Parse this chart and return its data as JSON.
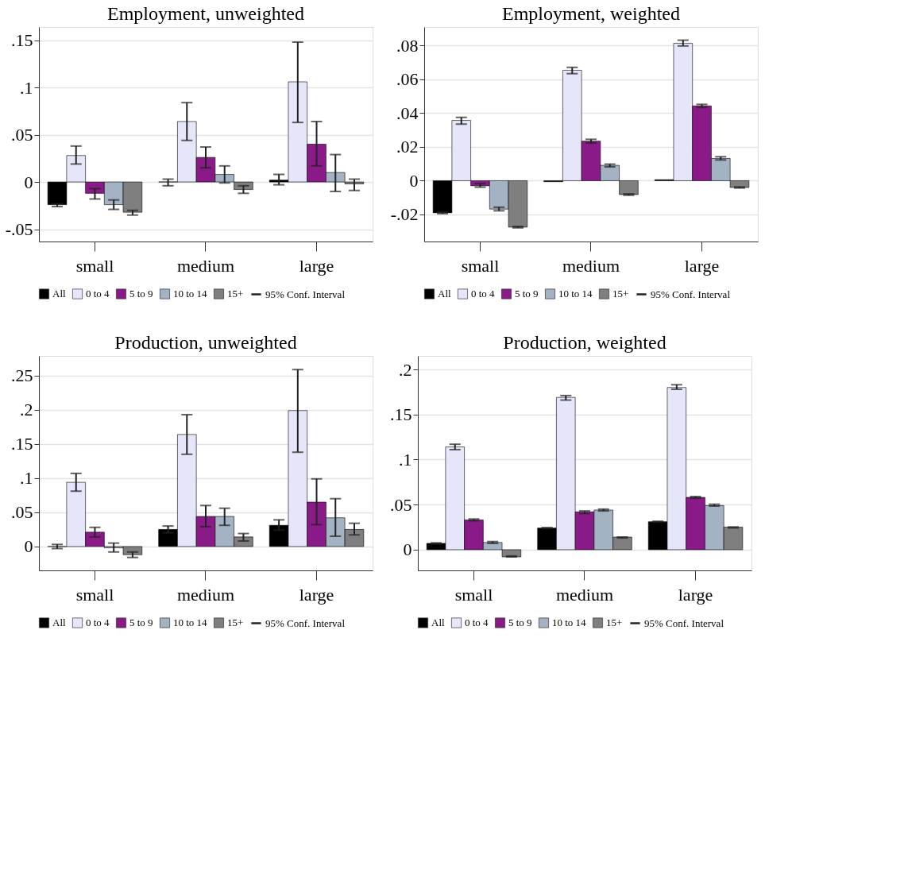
{
  "chart_data": [
    {
      "type": "bar",
      "title": "Employment, unweighted",
      "categories": [
        "small",
        "medium",
        "large"
      ],
      "annotations": [
        "95% Conf. Interval"
      ],
      "legend": "bottom",
      "grid": "y",
      "ylim": [
        -0.063,
        0.164
      ],
      "yticks": [
        {
          "value": -0.05,
          "label": "-.05"
        },
        0,
        {
          "value": 0.05,
          "label": ".05"
        },
        {
          "value": 0.1,
          "label": ".1"
        },
        {
          "value": 0.15,
          "label": ".15"
        }
      ],
      "series": [
        {
          "name": "All",
          "color": "#000000",
          "values": [
            -0.024,
            0.0,
            0.002
          ],
          "errors": [
            [
              -0.026,
              -0.023
            ],
            [
              -0.004,
              0.003
            ],
            [
              -0.003,
              0.008
            ]
          ]
        },
        {
          "name": "0 to 4",
          "color": "#e6e6fa",
          "values": [
            0.028,
            0.064,
            0.106
          ],
          "errors": [
            [
              0.019,
              0.038
            ],
            [
              0.044,
              0.084
            ],
            [
              0.063,
              0.148
            ]
          ]
        },
        {
          "name": "5 to 9",
          "color": "#8b1a89",
          "values": [
            -0.012,
            0.026,
            0.04
          ],
          "errors": [
            [
              -0.018,
              -0.007
            ],
            [
              0.015,
              0.037
            ],
            [
              0.017,
              0.064
            ]
          ]
        },
        {
          "name": "10 to 14",
          "color": "#a3b3c4",
          "values": [
            -0.024,
            0.008,
            0.01
          ],
          "errors": [
            [
              -0.029,
              -0.019
            ],
            [
              -0.001,
              0.017
            ],
            [
              -0.01,
              0.029
            ]
          ]
        },
        {
          "name": "15+",
          "color": "#7f7f7f",
          "values": [
            -0.032,
            -0.008,
            -0.002
          ],
          "errors": [
            [
              -0.035,
              -0.03
            ],
            [
              -0.012,
              -0.004
            ],
            [
              -0.009,
              0.003
            ]
          ]
        }
      ]
    },
    {
      "type": "bar",
      "title": "Employment, weighted",
      "categories": [
        "small",
        "medium",
        "large"
      ],
      "annotations": [
        "95% Conf. Interval"
      ],
      "legend": "bottom",
      "grid": "y",
      "ylim": [
        -0.036,
        0.091
      ],
      "yticks": [
        {
          "value": -0.02,
          "label": "-.02"
        },
        0,
        {
          "value": 0.02,
          "label": ".02"
        },
        {
          "value": 0.04,
          "label": ".04"
        },
        {
          "value": 0.06,
          "label": ".06"
        },
        {
          "value": 0.08,
          "label": ".08"
        }
      ],
      "series": [
        {
          "name": "All",
          "color": "#000000",
          "values": [
            -0.019,
            -0.0006,
            0.0006
          ],
          "errors": [
            [
              -0.0195,
              -0.0185
            ],
            null,
            null
          ]
        },
        {
          "name": "0 to 4",
          "color": "#e6e6fa",
          "values": [
            0.0357,
            0.0654,
            0.0814
          ],
          "errors": [
            [
              0.0335,
              0.0375
            ],
            [
              0.0634,
              0.0671
            ],
            [
              0.0798,
              0.0832
            ]
          ]
        },
        {
          "name": "5 to 9",
          "color": "#8b1a89",
          "values": [
            -0.003,
            0.0234,
            0.0443
          ],
          "errors": [
            [
              -0.0038,
              -0.0017
            ],
            [
              0.0223,
              0.0245
            ],
            [
              0.0434,
              0.0452
            ]
          ]
        },
        {
          "name": "10 to 14",
          "color": "#a3b3c4",
          "values": [
            -0.0168,
            0.0091,
            0.0132
          ],
          "errors": [
            [
              -0.0178,
              -0.0157
            ],
            [
              0.0082,
              0.0098
            ],
            [
              0.0123,
              0.0142
            ]
          ]
        },
        {
          "name": "15+",
          "color": "#7f7f7f",
          "values": [
            -0.0275,
            -0.0082,
            -0.004
          ],
          "errors": [
            [
              -0.0279,
              -0.0271
            ],
            [
              -0.0086,
              -0.0078
            ],
            [
              -0.0043,
              -0.0037
            ]
          ]
        }
      ]
    },
    {
      "type": "bar",
      "title": "Production, unweighted",
      "categories": [
        "small",
        "medium",
        "large"
      ],
      "annotations": [
        "95% Conf. Interval"
      ],
      "legend": "bottom",
      "grid": "y",
      "ylim": [
        -0.035,
        0.279
      ],
      "yticks": [
        0,
        {
          "value": 0.05,
          "label": ".05"
        },
        {
          "value": 0.1,
          "label": ".1"
        },
        {
          "value": 0.15,
          "label": ".15"
        },
        {
          "value": 0.2,
          "label": ".2"
        },
        {
          "value": 0.25,
          "label": ".25"
        }
      ],
      "series": [
        {
          "name": "All",
          "color": "#000000",
          "values": [
            0.0,
            0.025,
            0.031
          ],
          "errors": [
            [
              -0.003,
              0.003
            ],
            [
              0.02,
              0.03
            ],
            [
              0.024,
              0.039
            ]
          ]
        },
        {
          "name": "0 to 4",
          "color": "#e6e6fa",
          "values": [
            0.094,
            0.164,
            0.199
          ],
          "errors": [
            [
              0.081,
              0.107
            ],
            [
              0.135,
              0.193
            ],
            [
              0.138,
              0.259
            ]
          ]
        },
        {
          "name": "5 to 9",
          "color": "#8b1a89",
          "values": [
            0.021,
            0.044,
            0.065
          ],
          "errors": [
            [
              0.014,
              0.028
            ],
            [
              0.029,
              0.06
            ],
            [
              0.032,
              0.099
            ]
          ]
        },
        {
          "name": "10 to 14",
          "color": "#a3b3c4",
          "values": [
            -0.002,
            0.044,
            0.042
          ],
          "errors": [
            [
              -0.008,
              0.005
            ],
            [
              0.031,
              0.056
            ],
            [
              0.015,
              0.07
            ]
          ]
        },
        {
          "name": "15+",
          "color": "#7f7f7f",
          "values": [
            -0.012,
            0.014,
            0.025
          ],
          "errors": [
            [
              -0.016,
              -0.008
            ],
            [
              0.008,
              0.019
            ],
            [
              0.017,
              0.034
            ]
          ]
        }
      ]
    },
    {
      "type": "bar",
      "title": "Production, weighted",
      "categories": [
        "small",
        "medium",
        "large"
      ],
      "annotations": [
        "95% Conf. Interval"
      ],
      "legend": "bottom",
      "grid": "y",
      "ylim": [
        -0.023,
        0.215
      ],
      "yticks": [
        0,
        {
          "value": 0.05,
          "label": ".05"
        },
        {
          "value": 0.1,
          "label": ".1"
        },
        {
          "value": 0.15,
          "label": ".15"
        },
        {
          "value": 0.2,
          "label": ".2"
        }
      ],
      "series": [
        {
          "name": "All",
          "color": "#000000",
          "values": [
            0.007,
            0.024,
            0.031
          ],
          "errors": [
            [
              0.0065,
              0.0075
            ],
            [
              0.0235,
              0.0245
            ],
            [
              0.0305,
              0.0315
            ]
          ]
        },
        {
          "name": "0 to 4",
          "color": "#e6e6fa",
          "values": [
            0.114,
            0.169,
            0.18
          ],
          "errors": [
            [
              0.111,
              0.117
            ],
            [
              0.166,
              0.171
            ],
            [
              0.178,
              0.183
            ]
          ]
        },
        {
          "name": "5 to 9",
          "color": "#8b1a89",
          "values": [
            0.033,
            0.042,
            0.058
          ],
          "errors": [
            [
              0.032,
              0.034
            ],
            [
              0.04,
              0.043
            ],
            [
              0.057,
              0.059
            ]
          ]
        },
        {
          "name": "10 to 14",
          "color": "#a3b3c4",
          "values": [
            0.008,
            0.044,
            0.049
          ],
          "errors": [
            [
              0.007,
              0.009
            ],
            [
              0.043,
              0.045
            ],
            [
              0.0484,
              0.0504
            ]
          ]
        },
        {
          "name": "15+",
          "color": "#7f7f7f",
          "values": [
            -0.008,
            0.014,
            0.025
          ],
          "errors": [
            [
              -0.008,
              -0.007
            ],
            [
              0.013,
              0.014
            ],
            [
              0.0242,
              0.0252
            ]
          ]
        }
      ]
    }
  ]
}
